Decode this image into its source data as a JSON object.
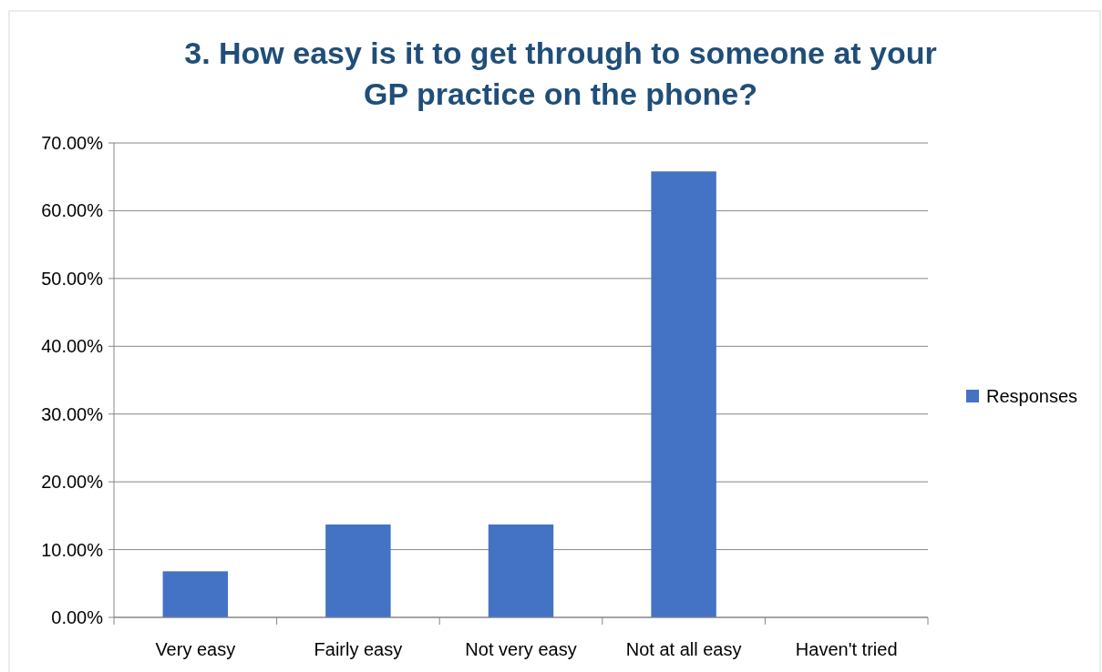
{
  "chart_data": {
    "type": "bar",
    "title": "3. How easy is it to get through to someone at your GP practice on the phone?",
    "categories": [
      "Very easy",
      "Fairly easy",
      "Not very easy",
      "Not at all easy",
      "Haven't tried"
    ],
    "series": [
      {
        "name": "Responses",
        "color": "#4472c4",
        "values": [
          6.8,
          13.7,
          13.7,
          65.8,
          0
        ]
      }
    ],
    "ylim": [
      0,
      70
    ],
    "yticks": [
      {
        "value": 0,
        "label": "0.00%"
      },
      {
        "value": 10,
        "label": "10.00%"
      },
      {
        "value": 20,
        "label": "20.00%"
      },
      {
        "value": 30,
        "label": "30.00%"
      },
      {
        "value": 40,
        "label": "40.00%"
      },
      {
        "value": 50,
        "label": "50.00%"
      },
      {
        "value": 60,
        "label": "60.00%"
      },
      {
        "value": 70,
        "label": "70.00%"
      }
    ],
    "grid": "y",
    "legend": "right"
  }
}
